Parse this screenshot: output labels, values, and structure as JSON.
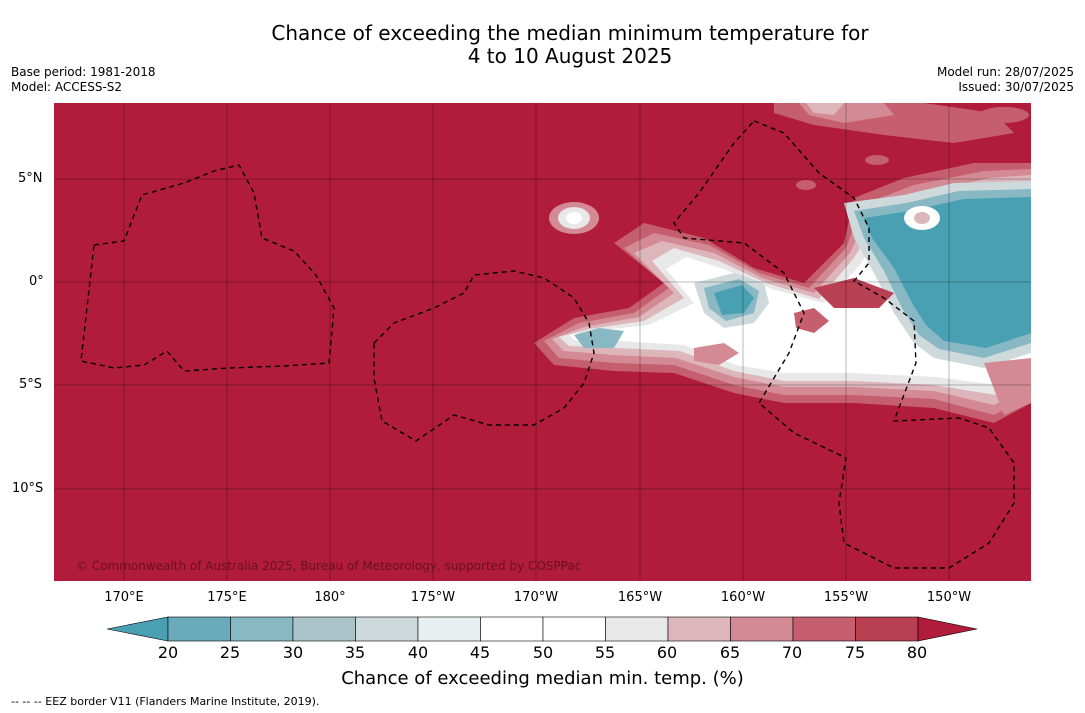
{
  "title": {
    "line1": "Chance of exceeding the median minimum temperature for",
    "line2": "4 to 10 August 2025"
  },
  "meta": {
    "base_period": "Base period: 1981-2018",
    "model": "Model: ACCESS-S2",
    "model_run": "Model run: 28/07/2025",
    "issued": "Issued: 30/07/2025"
  },
  "map": {
    "copyright": "© Commonwealth of Australia 2025, Bureau of Meteorology, supported by COSPPac",
    "lat_labels": [
      "5°N",
      "0°",
      "5°S",
      "10°S"
    ],
    "lon_labels": [
      "170°E",
      "175°E",
      "180°",
      "175°W",
      "170°W",
      "165°W",
      "160°W",
      "155°W",
      "150°W"
    ]
  },
  "colorbar": {
    "ticks": [
      "20",
      "25",
      "30",
      "35",
      "40",
      "45",
      "50",
      "55",
      "60",
      "65",
      "70",
      "75",
      "80"
    ],
    "label": "Chance of exceeding median min. temp. (%)",
    "colors": [
      "#4aa0b3",
      "#6aaabb",
      "#88b8c4",
      "#aac4ca",
      "#ced9dc",
      "#e9eff1",
      "#ffffff",
      "#ffffff",
      "#e8e8e8",
      "#ddb6bc",
      "#d48a94",
      "#c55f6d",
      "#b93f52",
      "#b01c3a"
    ]
  },
  "legend_footer": "--  --  -- EEZ border V11 (Flanders Marine Institute, 2019)."
}
